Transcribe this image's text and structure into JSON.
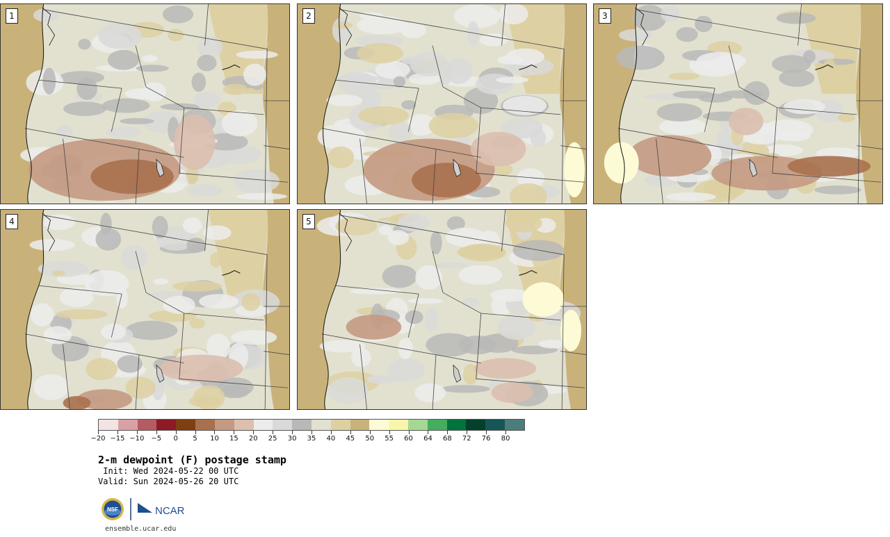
{
  "panels": [
    {
      "label": "1"
    },
    {
      "label": "2"
    },
    {
      "label": "3"
    },
    {
      "label": "4"
    },
    {
      "label": "5"
    }
  ],
  "colorbar": {
    "colors": [
      "#f3e4e4",
      "#d9a1a4",
      "#b45c62",
      "#8e1a24",
      "#7f3f10",
      "#a8704e",
      "#c49a82",
      "#dcbfae",
      "#ececec",
      "#d9d9d9",
      "#b8b8b8",
      "#e2e0cf",
      "#ddd0a2",
      "#c9b27a",
      "#fdfbd6",
      "#f8f6aa",
      "#a7d893",
      "#44ae5e",
      "#00743b",
      "#04402b",
      "#175656",
      "#4c7c7c"
    ],
    "tick_labels": [
      "−20",
      "−15",
      "−10",
      "−5",
      "0",
      "5",
      "10",
      "15",
      "20",
      "25",
      "30",
      "35",
      "40",
      "45",
      "50",
      "55",
      "60",
      "64",
      "68",
      "72",
      "76",
      "80"
    ]
  },
  "title": "2-m dewpoint (F) postage stamp",
  "init": " Init: Wed 2024-05-22 00 UTC",
  "valid": "Valid: Sun 2024-05-26 20 UTC",
  "logo": {
    "nsf": "NSF",
    "ncar": "NCAR"
  },
  "footer": "ensemble.ucar.edu"
}
